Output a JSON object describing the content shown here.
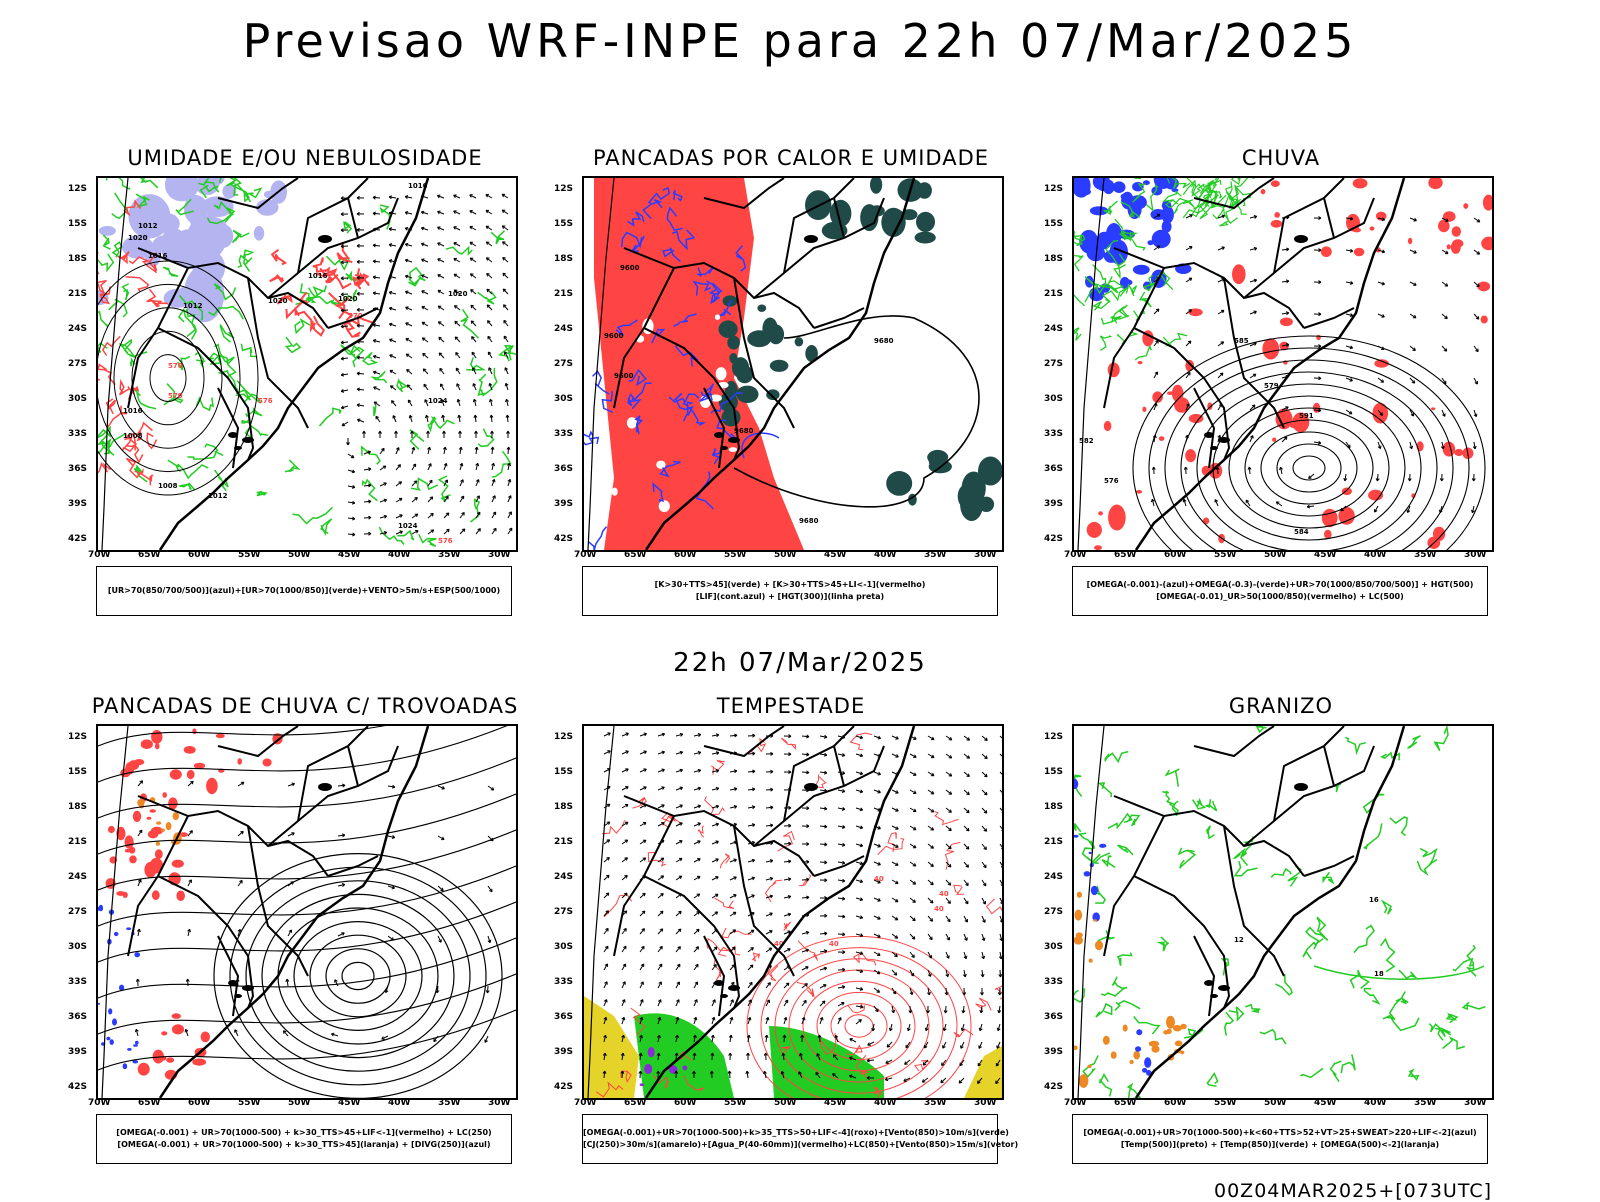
{
  "title": "Previsao WRF-INPE  para 22h 07/Mar/2025",
  "mid_title": "22h 07/Mar/2025",
  "footer": "00Z04MAR2025+[073UTC]",
  "axes": {
    "lat_labels": [
      "12S",
      "15S",
      "18S",
      "21S",
      "24S",
      "27S",
      "30S",
      "33S",
      "36S",
      "39S",
      "42S"
    ],
    "lon_labels": [
      "70W",
      "65W",
      "60W",
      "55W",
      "50W",
      "45W",
      "40W",
      "35W",
      "30W"
    ]
  },
  "colors": {
    "humidity_blue": "#b4b4f0",
    "green": "#22cc22",
    "red": "#ff4444",
    "dark_teal": "#1f4a48",
    "blue": "#2a3cff",
    "yellow": "#e6d32a",
    "orange": "#ee8822",
    "purple": "#8b2bd6"
  },
  "panels": [
    {
      "title": "UMIDADE E/OU NEBULOSIDADE",
      "legend": [
        "[UR>70(850/700/500)](azul)+[UR>70(1000/850)](verde)+VENTO>5m/s+ESP(500/1000)"
      ],
      "contour_labels": [
        "1016",
        "1012",
        "1020",
        "1016",
        "1012",
        "1020",
        "1020",
        "1016",
        "1020",
        "1024",
        "1008",
        "1016",
        "1008",
        "1012",
        "1024",
        "576",
        "570",
        "570",
        "576",
        "570"
      ]
    },
    {
      "title": "PANCADAS POR CALOR E UMIDADE",
      "legend": [
        "[K>30+TTS>45](verde) + [K>30+TTS>45+LI<-1](vermelho)",
        "[LIF](cont.azul) + [HGT(300)](linha preta)"
      ],
      "contour_labels": [
        "9600",
        "9600",
        "9680",
        "9680",
        "9600",
        "9680"
      ]
    },
    {
      "title": "CHUVA",
      "legend": [
        "[OMEGA(-0.001)-(azul)+OMEGA(-0.3)-(verde)+UR>70(1000/850/700/500)] + HGT(500)",
        "[OMEGA(-0.01)_UR>50(1000/850)(vermelho) + LC(500)"
      ],
      "contour_labels": [
        "585",
        "582",
        "576",
        "579",
        "591",
        "584"
      ]
    },
    {
      "title": "PANCADAS DE CHUVA C/ TROVOADAS",
      "legend": [
        "[OMEGA(-0.001) + UR>70(1000-500) + k>30_TTS>45+LIF<-1](vermelho) + LC(250)",
        "[OMEGA(-0.001) + UR>70(1000-500) + k>30_TTS>45](laranja) + [DIVG(250)](azul)"
      ],
      "contour_labels": []
    },
    {
      "title": "TEMPESTADE",
      "legend": [
        "[OMEGA(-0.001)+UR>70(1000-500)+k>35_TTS>50+LIF<-4](roxo)+[Vento(850)>10m/s](verde)",
        "[CJ(250)>30m/s](amarelo)+[Agua_P(40-60mm)](vermelho)+LC(850)+[Vento(850)>15m/s](vetor)"
      ],
      "contour_labels": [
        "40",
        "40",
        "40",
        "40",
        "40"
      ]
    },
    {
      "title": "GRANIZO",
      "legend": [
        "[OMEGA(-0.001)+UR>70(1000-500)+k<60+TTS>52+VT>25+SWEAT>220+LIF<-2](azul)",
        "[Temp(500)](preto) + [Temp(850)](verde) + [OMEGA(500)<-2](laranja)"
      ],
      "contour_labels": [
        "12",
        "16",
        "18"
      ]
    }
  ]
}
